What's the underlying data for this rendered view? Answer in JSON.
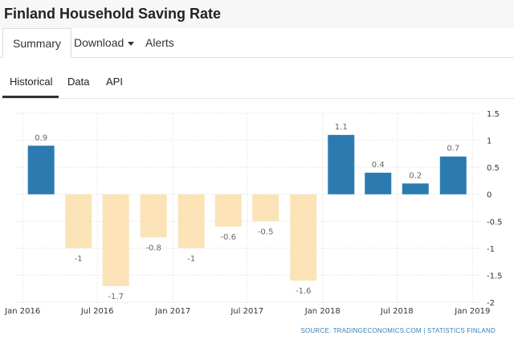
{
  "header": {
    "title": "Finland Household Saving Rate"
  },
  "tabs": {
    "summary": "Summary",
    "download": "Download",
    "alerts": "Alerts"
  },
  "subtabs": {
    "historical": "Historical",
    "data": "Data",
    "api": "API"
  },
  "source": "SOURCE: TRADINGECONOMICS.COM | STATISTICS FINLAND",
  "colors": {
    "positive": "#2b7bb0",
    "negative": "#fbe3b7",
    "grid": "#d9d9d9",
    "label": "#666666"
  },
  "chart_data": {
    "type": "bar",
    "x": [
      "2016-01",
      "2016-04",
      "2016-07",
      "2016-10",
      "2017-01",
      "2017-04",
      "2017-07",
      "2017-10",
      "2018-01",
      "2018-04",
      "2018-07",
      "2018-10"
    ],
    "values": [
      0.9,
      -1,
      -1.7,
      -0.8,
      -1,
      -0.6,
      -0.5,
      -1.6,
      1.1,
      0.4,
      0.2,
      0.7
    ],
    "data_labels": [
      "0.9",
      "-1",
      "-1.7",
      "-0.8",
      "-1",
      "-0.6",
      "-0.5",
      "-1.6",
      "1.1",
      "0.4",
      "0.2",
      "0.7"
    ],
    "x_tick_labels": [
      "Jan 2016",
      "Jul 2016",
      "Jan 2017",
      "Jul 2017",
      "Jan 2018",
      "Jul 2018",
      "Jan 2019"
    ],
    "y_tick_labels": [
      "1.5",
      "1",
      "0.5",
      "0",
      "-0.5",
      "-1",
      "-1.5",
      "-2"
    ],
    "ylim": [
      -2,
      1.5
    ],
    "grid": true,
    "title": "",
    "xlabel": "",
    "ylabel": ""
  }
}
